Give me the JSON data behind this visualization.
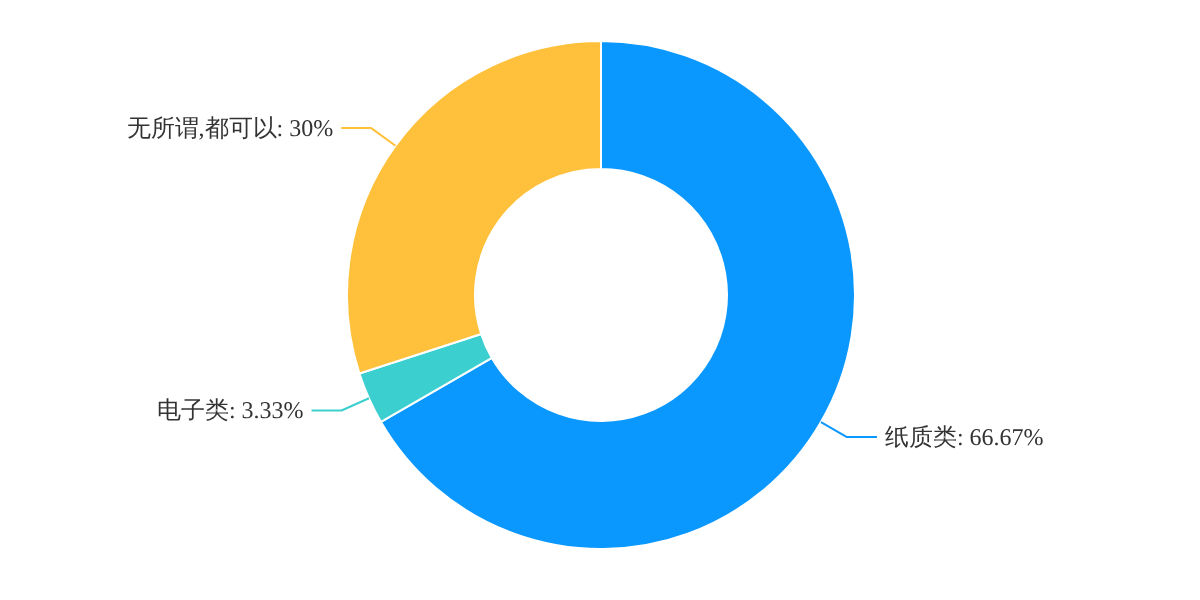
{
  "chart_data": {
    "type": "donut",
    "categories": [
      "纸质类",
      "电子类",
      "无所谓,都可以"
    ],
    "values": [
      66.67,
      3.33,
      30
    ],
    "value_labels": [
      "66.67%",
      "3.33%",
      "30%"
    ],
    "colors": [
      "#0a98fe",
      "#3ccfcf",
      "#ffc13b"
    ]
  }
}
